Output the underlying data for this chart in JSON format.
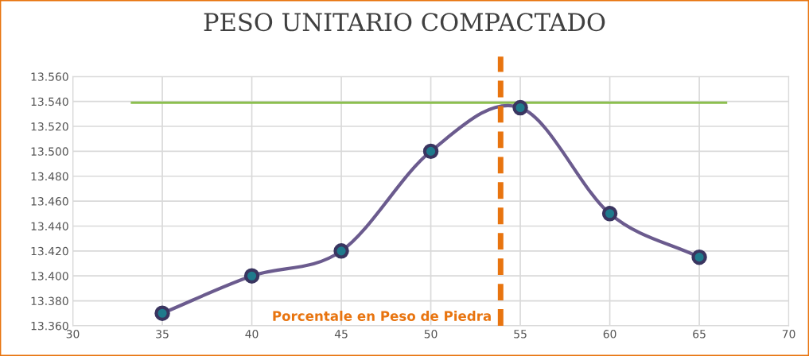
{
  "chart_data": {
    "type": "line",
    "title": "PESO UNITARIO COMPACTADO",
    "series": [
      {
        "color": "#6b5b8e",
        "marker": "circle",
        "x": [
          35,
          40,
          45,
          50,
          55,
          60,
          65
        ],
        "values": [
          13.37,
          13.4,
          13.42,
          13.5,
          13.535,
          13.45,
          13.415
        ]
      },
      {
        "color": "#8cbf4f",
        "x": [
          33.3,
          66.5
        ],
        "values": [
          13.539,
          13.539
        ]
      }
    ],
    "ref_lines": [
      {
        "axis": "x",
        "value": 53.9,
        "label": "Porcentale en Peso de Piedra",
        "color": "#e8740f",
        "line_style": "dashed"
      }
    ],
    "xlim": [
      30,
      70
    ],
    "xticks": [
      30,
      35,
      40,
      45,
      50,
      55,
      60,
      65,
      70
    ],
    "ylim": [
      13.36,
      13.56
    ],
    "yticks": [
      {
        "value": 13.36,
        "label": "13.360"
      },
      {
        "value": 13.38,
        "label": "13.380"
      },
      {
        "value": 13.4,
        "label": "13.400"
      },
      {
        "value": 13.42,
        "label": "13.420"
      },
      {
        "value": 13.44,
        "label": "13.440"
      },
      {
        "value": 13.46,
        "label": "13.460"
      },
      {
        "value": 13.48,
        "label": "13.480"
      },
      {
        "value": 13.5,
        "label": "13.500"
      },
      {
        "value": 13.52,
        "label": "13.520"
      },
      {
        "value": 13.54,
        "label": "13.540"
      },
      {
        "value": 13.56,
        "label": "13.560"
      }
    ],
    "grid": true,
    "legend": false
  }
}
